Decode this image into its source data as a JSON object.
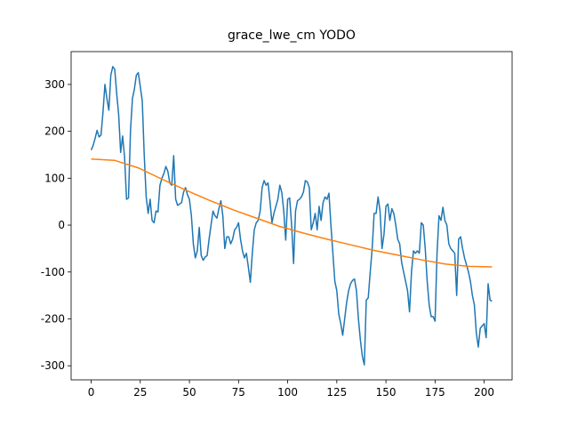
{
  "chart_data": {
    "type": "line",
    "title": "grace_lwe_cm YODO",
    "xlim": [
      -10.2,
      214.2
    ],
    "ylim": [
      -330,
      370
    ],
    "xticks": [
      0,
      25,
      50,
      75,
      100,
      125,
      150,
      175,
      200
    ],
    "yticks": [
      -300,
      -200,
      -100,
      0,
      100,
      200,
      300
    ],
    "series": [
      {
        "color": "#1f77b4",
        "x": [
          0,
          1,
          2,
          3,
          4,
          5,
          6,
          7,
          8,
          9,
          10,
          11,
          12,
          13,
          14,
          15,
          16,
          17,
          18,
          19,
          20,
          21,
          22,
          23,
          24,
          25,
          26,
          27,
          28,
          29,
          30,
          31,
          32,
          33,
          34,
          35,
          36,
          37,
          38,
          39,
          40,
          41,
          42,
          43,
          44,
          45,
          46,
          47,
          48,
          49,
          50,
          51,
          52,
          53,
          54,
          55,
          56,
          57,
          58,
          59,
          60,
          61,
          62,
          63,
          64,
          65,
          66,
          67,
          68,
          69,
          70,
          71,
          72,
          73,
          74,
          75,
          76,
          77,
          78,
          79,
          80,
          81,
          82,
          83,
          84,
          85,
          86,
          87,
          88,
          89,
          90,
          91,
          92,
          93,
          94,
          95,
          96,
          97,
          98,
          99,
          100,
          101,
          102,
          103,
          104,
          105,
          106,
          107,
          108,
          109,
          110,
          111,
          112,
          113,
          114,
          115,
          116,
          117,
          118,
          119,
          120,
          121,
          122,
          123,
          124,
          125,
          126,
          127,
          128,
          129,
          130,
          131,
          132,
          133,
          134,
          135,
          136,
          137,
          138,
          139,
          140,
          141,
          142,
          143,
          144,
          145,
          146,
          147,
          148,
          149,
          150,
          151,
          152,
          153,
          154,
          155,
          156,
          157,
          158,
          159,
          160,
          161,
          162,
          163,
          164,
          165,
          166,
          167,
          168,
          169,
          170,
          171,
          172,
          173,
          174,
          175,
          176,
          177,
          178,
          179,
          180,
          181,
          182,
          183,
          184,
          185,
          186,
          187,
          188,
          189,
          190,
          191,
          192,
          193,
          194,
          195,
          196,
          197,
          198,
          199,
          200,
          201,
          202,
          203,
          204
        ],
        "values": [
          160,
          170,
          185,
          202,
          188,
          192,
          240,
          300,
          270,
          245,
          320,
          338,
          332,
          280,
          235,
          155,
          190,
          145,
          55,
          58,
          200,
          270,
          290,
          320,
          325,
          295,
          265,
          150,
          60,
          25,
          55,
          10,
          5,
          30,
          28,
          85,
          100,
          110,
          125,
          115,
          90,
          85,
          148,
          55,
          42,
          45,
          48,
          70,
          80,
          65,
          55,
          20,
          -40,
          -70,
          -55,
          -5,
          -65,
          -75,
          -68,
          -65,
          -30,
          0,
          30,
          20,
          15,
          35,
          52,
          20,
          -50,
          -25,
          -25,
          -40,
          -30,
          -10,
          -5,
          5,
          -30,
          -55,
          -70,
          -60,
          -90,
          -122,
          -60,
          -10,
          5,
          10,
          30,
          80,
          95,
          85,
          90,
          50,
          5,
          25,
          40,
          55,
          85,
          70,
          30,
          -32,
          55,
          58,
          0,
          -82,
          30,
          52,
          55,
          60,
          70,
          95,
          92,
          80,
          -10,
          5,
          25,
          -10,
          40,
          10,
          48,
          60,
          55,
          68,
          0,
          -60,
          -120,
          -140,
          -190,
          -210,
          -235,
          -200,
          -165,
          -140,
          -125,
          -118,
          -115,
          -140,
          -200,
          -245,
          -280,
          -298,
          -160,
          -155,
          -100,
          -50,
          25,
          25,
          60,
          30,
          -50,
          -20,
          40,
          45,
          10,
          35,
          25,
          0,
          -30,
          -40,
          -80,
          -100,
          -120,
          -140,
          -185,
          -100,
          -55,
          -60,
          -55,
          -60,
          5,
          0,
          -50,
          -120,
          -170,
          -195,
          -195,
          -205,
          -60,
          20,
          10,
          38,
          10,
          0,
          -40,
          -50,
          -55,
          -60,
          -150,
          -30,
          -25,
          -50,
          -70,
          -85,
          -100,
          -120,
          -150,
          -170,
          -230,
          -260,
          -220,
          -215,
          -210,
          -240,
          -125,
          -160,
          -162
        ]
      },
      {
        "color": "#ff7f0e",
        "x": [
          0,
          12,
          24,
          36,
          48,
          60,
          72,
          84,
          96,
          108,
          120,
          132,
          144,
          156,
          168,
          180,
          192,
          204
        ],
        "values": [
          141,
          138,
          122,
          98,
          75,
          53,
          33,
          15,
          -3,
          -17,
          -30,
          -42,
          -54,
          -64,
          -74,
          -83,
          -88,
          -89
        ]
      }
    ]
  }
}
